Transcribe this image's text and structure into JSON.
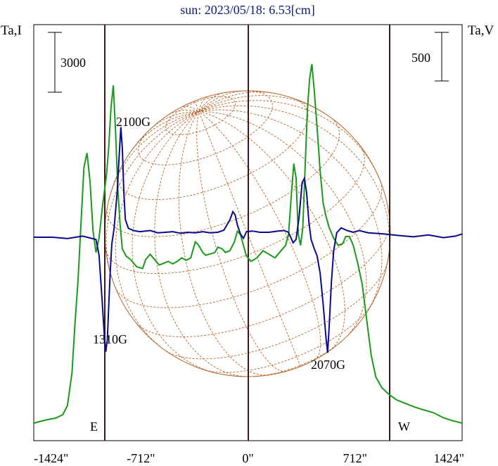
{
  "chart_data": {
    "type": "line",
    "title": "sun: 2023/05/18: 6.53[cm]",
    "left_axis_label": "Ta,I",
    "right_axis_label": "Ta,V",
    "x_ticks": [
      "-1424\"",
      "-712\"",
      "0\"",
      "712\"",
      "1424\""
    ],
    "x_tick_values": [
      -1424,
      -712,
      0,
      712,
      1424
    ],
    "xlim": [
      -1424,
      1424
    ],
    "left_scale_bar_label": "3000",
    "right_scale_bar_label": "500",
    "limb_labels": {
      "east": "E",
      "west": "W"
    },
    "limb_x": [
      -712,
      712
    ],
    "colors": {
      "intensity": "#1a9a1a",
      "polarization": "#0a0a8a",
      "disk": "#b5652a",
      "title": "#0a1a7a",
      "frame": "#000000",
      "vlines": "#3a1a1a"
    },
    "series": [
      {
        "name": "Ta,I",
        "color": "#1a9a1a",
        "points": [
          [
            -1424,
            -200
          ],
          [
            -1380,
            -150
          ],
          [
            -1330,
            -100
          ],
          [
            -1280,
            -60
          ],
          [
            -1230,
            40
          ],
          [
            -1200,
            300
          ],
          [
            -1170,
            1200
          ],
          [
            -1150,
            2600
          ],
          [
            -1130,
            3800
          ],
          [
            -1110,
            5400
          ],
          [
            -1090,
            7000
          ],
          [
            -1070,
            7400
          ],
          [
            -1050,
            6600
          ],
          [
            -1030,
            5200
          ],
          [
            -1010,
            4600
          ],
          [
            -990,
            5000
          ],
          [
            -970,
            5800
          ],
          [
            -955,
            6300
          ],
          [
            -940,
            6800
          ],
          [
            -925,
            7600
          ],
          [
            -910,
            8700
          ],
          [
            -895,
            9300
          ],
          [
            -880,
            8000
          ],
          [
            -865,
            6400
          ],
          [
            -850,
            5400
          ],
          [
            -835,
            4700
          ],
          [
            -810,
            4500
          ],
          [
            -780,
            4400
          ],
          [
            -740,
            4200
          ],
          [
            -700,
            4150
          ],
          [
            -680,
            4400
          ],
          [
            -650,
            4550
          ],
          [
            -620,
            4400
          ],
          [
            -590,
            4250
          ],
          [
            -560,
            4300
          ],
          [
            -530,
            4350
          ],
          [
            -500,
            4280
          ],
          [
            -470,
            4350
          ],
          [
            -440,
            4450
          ],
          [
            -410,
            4380
          ],
          [
            -380,
            4450
          ],
          [
            -350,
            4900
          ],
          [
            -330,
            4820
          ],
          [
            -300,
            4600
          ],
          [
            -280,
            4520
          ],
          [
            -260,
            4550
          ],
          [
            -240,
            4570
          ],
          [
            -220,
            4600
          ],
          [
            -200,
            4750
          ],
          [
            -170,
            4700
          ],
          [
            -150,
            4600
          ],
          [
            -120,
            4650
          ],
          [
            -90,
            4900
          ],
          [
            -70,
            5200
          ],
          [
            -50,
            5100
          ],
          [
            -30,
            4800
          ],
          [
            -10,
            4500
          ],
          [
            20,
            4350
          ],
          [
            60,
            4450
          ],
          [
            100,
            4650
          ],
          [
            140,
            4550
          ],
          [
            180,
            4450
          ],
          [
            220,
            4650
          ],
          [
            250,
            4800
          ],
          [
            270,
            5100
          ],
          [
            290,
            6300
          ],
          [
            305,
            7100
          ],
          [
            320,
            6700
          ],
          [
            335,
            5100
          ],
          [
            350,
            4800
          ],
          [
            365,
            5300
          ],
          [
            380,
            7000
          ],
          [
            395,
            8600
          ],
          [
            410,
            9500
          ],
          [
            425,
            9900
          ],
          [
            440,
            9200
          ],
          [
            460,
            8100
          ],
          [
            480,
            6900
          ],
          [
            500,
            6000
          ],
          [
            520,
            5600
          ],
          [
            540,
            5300
          ],
          [
            570,
            5000
          ],
          [
            600,
            4800
          ],
          [
            630,
            4850
          ],
          [
            650,
            5050
          ],
          [
            675,
            5050
          ],
          [
            700,
            4800
          ],
          [
            730,
            4300
          ],
          [
            760,
            3700
          ],
          [
            790,
            2700
          ],
          [
            820,
            1700
          ],
          [
            850,
            1100
          ],
          [
            890,
            800
          ],
          [
            940,
            600
          ],
          [
            990,
            450
          ],
          [
            1050,
            350
          ],
          [
            1110,
            250
          ],
          [
            1170,
            170
          ],
          [
            1230,
            100
          ],
          [
            1300,
            -50
          ],
          [
            1360,
            -130
          ],
          [
            1424,
            -200
          ]
        ]
      },
      {
        "name": "Ta,V",
        "color": "#0a0a8a",
        "points": [
          [
            -1424,
            0
          ],
          [
            -1300,
            0
          ],
          [
            -1200,
            -6
          ],
          [
            -1100,
            5
          ],
          [
            -1010,
            -10
          ],
          [
            -990,
            -80
          ],
          [
            -970,
            -280
          ],
          [
            -955,
            -440
          ],
          [
            -945,
            -515
          ],
          [
            -935,
            -460
          ],
          [
            -925,
            -300
          ],
          [
            -915,
            -150
          ],
          [
            -905,
            -30
          ],
          [
            -890,
            40
          ],
          [
            -870,
            200
          ],
          [
            -855,
            380
          ],
          [
            -845,
            495
          ],
          [
            -835,
            400
          ],
          [
            -825,
            200
          ],
          [
            -815,
            80
          ],
          [
            -795,
            40
          ],
          [
            -760,
            30
          ],
          [
            -720,
            25
          ],
          [
            -650,
            30
          ],
          [
            -600,
            20
          ],
          [
            -550,
            22
          ],
          [
            -500,
            25
          ],
          [
            -450,
            18
          ],
          [
            -400,
            22
          ],
          [
            -350,
            20
          ],
          [
            -300,
            25
          ],
          [
            -250,
            20
          ],
          [
            -200,
            22
          ],
          [
            -160,
            32
          ],
          [
            -120,
            78
          ],
          [
            -100,
            115
          ],
          [
            -85,
            100
          ],
          [
            -70,
            55
          ],
          [
            -50,
            15
          ],
          [
            -30,
            -5
          ],
          [
            -10,
            25
          ],
          [
            30,
            28
          ],
          [
            80,
            22
          ],
          [
            140,
            22
          ],
          [
            200,
            28
          ],
          [
            240,
            30
          ],
          [
            270,
            22
          ],
          [
            300,
            -25
          ],
          [
            320,
            -10
          ],
          [
            340,
            90
          ],
          [
            360,
            245
          ],
          [
            375,
            265
          ],
          [
            390,
            200
          ],
          [
            405,
            70
          ],
          [
            420,
            -10
          ],
          [
            440,
            -50
          ],
          [
            460,
            -85
          ],
          [
            480,
            -160
          ],
          [
            500,
            -300
          ],
          [
            520,
            -460
          ],
          [
            530,
            -520
          ],
          [
            540,
            -400
          ],
          [
            555,
            -200
          ],
          [
            570,
            -60
          ],
          [
            590,
            20
          ],
          [
            620,
            42
          ],
          [
            660,
            30
          ],
          [
            700,
            22
          ],
          [
            740,
            30
          ],
          [
            800,
            20
          ],
          [
            900,
            15
          ],
          [
            1000,
            8
          ],
          [
            1100,
            2
          ],
          [
            1200,
            10
          ],
          [
            1300,
            -2
          ],
          [
            1380,
            5
          ],
          [
            1424,
            15
          ]
        ]
      }
    ],
    "annotations": [
      {
        "text": "2100G",
        "x": -760,
        "y_series": "Ta,I"
      },
      {
        "text": "1310G",
        "x": -960,
        "y_series": "Ta,V"
      },
      {
        "text": "2070G",
        "x": 450,
        "y_series": "Ta,V"
      }
    ],
    "left_ylim": [
      -500,
      11000
    ],
    "right_ylim": [
      -1000,
      1000
    ],
    "grid": false,
    "disk_outline": true
  }
}
